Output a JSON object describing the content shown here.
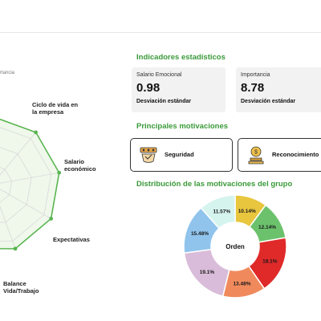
{
  "radar": {
    "legend_fragment": "rtancia",
    "axes": [
      {
        "id": "ciclo",
        "lines": [
          "Ciclo de vida en",
          "la empresa"
        ]
      },
      {
        "id": "salario",
        "lines": [
          "Salario",
          "económico"
        ]
      },
      {
        "id": "expectativas",
        "lines": [
          "Expectativas"
        ]
      },
      {
        "id": "balance",
        "lines": [
          "Balance",
          "Vida/Trabajo"
        ]
      }
    ],
    "colors": {
      "line": "#5ab552",
      "fill": "#e8f5e2",
      "grid": "#d9d9d9"
    }
  },
  "indicators": {
    "title": "Indicadores estadísticos",
    "cards": [
      {
        "label": "Salario Emocional",
        "value": "0.98",
        "sub": "Desviación estándar"
      },
      {
        "label": "Importancia",
        "value": "8.78",
        "sub": "Desviación estándar"
      }
    ]
  },
  "motivations": {
    "title": "Principales motivaciones",
    "items": [
      {
        "label": "Seguridad",
        "icon": "security-icon"
      },
      {
        "label": "Reconocimiento",
        "icon": "award-icon"
      }
    ]
  },
  "distribution": {
    "title": "Distribución de las motivaciones del grupo",
    "center_label": "Orden"
  },
  "chart_data": {
    "type": "pie",
    "title": "Distribución de las motivaciones del grupo",
    "slices": [
      {
        "label": "10.14%",
        "value": 10.14,
        "color": "#e8c63d"
      },
      {
        "label": "12.14%",
        "value": 12.14,
        "color": "#6cc26c"
      },
      {
        "label": "18.1%",
        "value": 18.1,
        "color": "#e02929"
      },
      {
        "label": "13.48%",
        "value": 13.48,
        "color": "#f08a5d"
      },
      {
        "label": "19.1%",
        "value": 19.1,
        "color": "#d9bcd9"
      },
      {
        "label": "15.48%",
        "value": 15.48,
        "color": "#90c4ec"
      },
      {
        "label": "11.57%",
        "value": 11.57,
        "color": "#d6f4ee"
      }
    ]
  }
}
